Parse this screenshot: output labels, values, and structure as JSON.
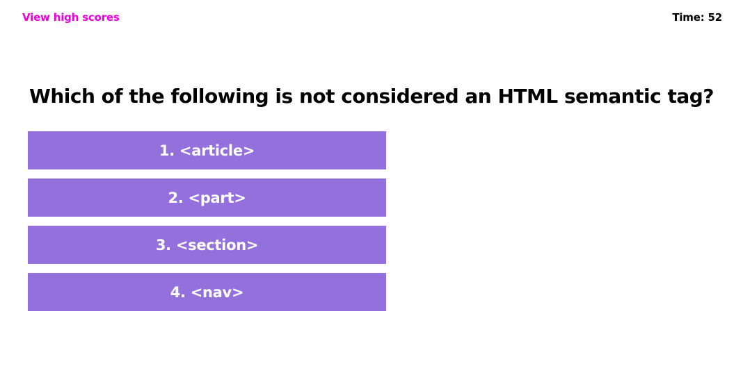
{
  "header": {
    "high_scores_label": "View high scores",
    "timer_text": "Time: 52"
  },
  "quiz": {
    "question": "Which of the following is not considered an HTML semantic tag?",
    "answers": [
      {
        "label": "1. <article>"
      },
      {
        "label": "2. <part>"
      },
      {
        "label": "3. <section>"
      },
      {
        "label": "4. <nav>"
      }
    ]
  },
  "colors": {
    "link": "#ee00dd",
    "answer_button_bg": "#9370db",
    "answer_button_text": "#ffffff",
    "text": "#000000",
    "background": "#ffffff"
  }
}
